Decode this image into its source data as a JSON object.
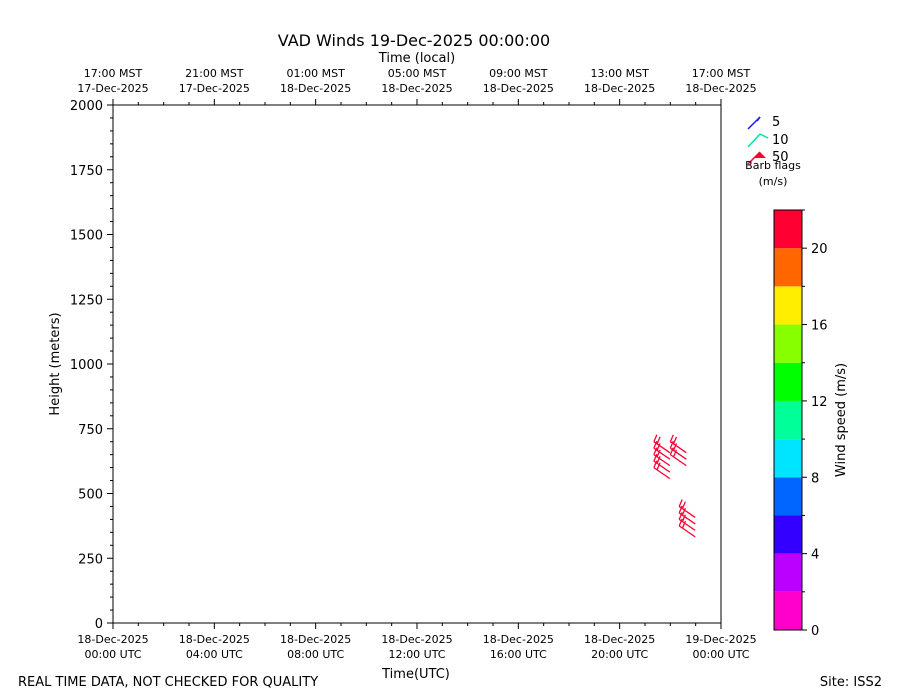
{
  "title": "VAD Winds 19-Dec-2025 00:00:00",
  "chart_data": {
    "type": "vad_wind_barbs",
    "title": "VAD Winds 19-Dec-2025 00:00:00",
    "xlabel": "Time(UTC)",
    "x2label": "Time (local)",
    "ylabel": "Height (meters)",
    "xlim_hours": [
      0,
      24
    ],
    "ylim": [
      0,
      2000
    ],
    "x_ticks": [
      {
        "hour": 0,
        "line1": "18-Dec-2025",
        "line2": "00:00 UTC"
      },
      {
        "hour": 4,
        "line1": "18-Dec-2025",
        "line2": "04:00 UTC"
      },
      {
        "hour": 8,
        "line1": "18-Dec-2025",
        "line2": "08:00 UTC"
      },
      {
        "hour": 12,
        "line1": "18-Dec-2025",
        "line2": "12:00 UTC"
      },
      {
        "hour": 16,
        "line1": "18-Dec-2025",
        "line2": "16:00 UTC"
      },
      {
        "hour": 20,
        "line1": "18-Dec-2025",
        "line2": "20:00 UTC"
      },
      {
        "hour": 24,
        "line1": "19-Dec-2025",
        "line2": "00:00 UTC"
      }
    ],
    "x2_ticks": [
      {
        "hour": 0,
        "line1": "17:00 MST",
        "line2": "17-Dec-2025"
      },
      {
        "hour": 4,
        "line1": "21:00 MST",
        "line2": "17-Dec-2025"
      },
      {
        "hour": 8,
        "line1": "01:00 MST",
        "line2": "18-Dec-2025"
      },
      {
        "hour": 12,
        "line1": "05:00 MST",
        "line2": "18-Dec-2025"
      },
      {
        "hour": 16,
        "line1": "09:00 MST",
        "line2": "18-Dec-2025"
      },
      {
        "hour": 20,
        "line1": "13:00 MST",
        "line2": "18-Dec-2025"
      },
      {
        "hour": 24,
        "line1": "17:00 MST",
        "line2": "18-Dec-2025"
      }
    ],
    "y_ticks": [
      0,
      250,
      500,
      750,
      1000,
      1250,
      1500,
      1750,
      2000
    ],
    "barb_color": "#ff0033",
    "barbs": [
      {
        "hour": 21.35,
        "height": 600,
        "speed": 20
      },
      {
        "hour": 21.35,
        "height": 625,
        "speed": 20
      },
      {
        "hour": 21.35,
        "height": 650,
        "speed": 20
      },
      {
        "hour": 21.35,
        "height": 675,
        "speed": 20
      },
      {
        "hour": 21.35,
        "height": 700,
        "speed": 20
      },
      {
        "hour": 22.0,
        "height": 650,
        "speed": 20
      },
      {
        "hour": 22.0,
        "height": 675,
        "speed": 20
      },
      {
        "hour": 22.0,
        "height": 700,
        "speed": 20
      },
      {
        "hour": 22.35,
        "height": 375,
        "speed": 20
      },
      {
        "hour": 22.35,
        "height": 400,
        "speed": 20
      },
      {
        "hour": 22.35,
        "height": 425,
        "speed": 20
      },
      {
        "hour": 22.35,
        "height": 450,
        "speed": 20
      }
    ],
    "barb_legend": {
      "entries": [
        {
          "label": "5",
          "color": "#1a1aff"
        },
        {
          "label": "10",
          "color": "#00e6a0"
        },
        {
          "label": "50",
          "color": "#ff0033"
        }
      ],
      "title_line1": "Barb flags",
      "title_line2": "(m/s)"
    },
    "colorbar": {
      "label": "Wind speed (m/s)",
      "min": 0,
      "max": 22,
      "ticks": [
        0,
        4,
        8,
        12,
        16,
        20
      ],
      "bins": [
        {
          "from": 0,
          "to": 2,
          "color": "#ff00cc"
        },
        {
          "from": 2,
          "to": 4,
          "color": "#bb00ff"
        },
        {
          "from": 4,
          "to": 6,
          "color": "#3300ff"
        },
        {
          "from": 6,
          "to": 8,
          "color": "#0066ff"
        },
        {
          "from": 8,
          "to": 10,
          "color": "#00e5ff"
        },
        {
          "from": 10,
          "to": 12,
          "color": "#00ff99"
        },
        {
          "from": 12,
          "to": 14,
          "color": "#00ff00"
        },
        {
          "from": 14,
          "to": 16,
          "color": "#88ff00"
        },
        {
          "from": 16,
          "to": 18,
          "color": "#ffee00"
        },
        {
          "from": 18,
          "to": 20,
          "color": "#ff6600"
        },
        {
          "from": 20,
          "to": 22,
          "color": "#ff0033"
        }
      ]
    }
  },
  "footer": {
    "disclaimer": "REAL TIME DATA, NOT CHECKED FOR QUALITY",
    "site": "Site: ISS2"
  }
}
